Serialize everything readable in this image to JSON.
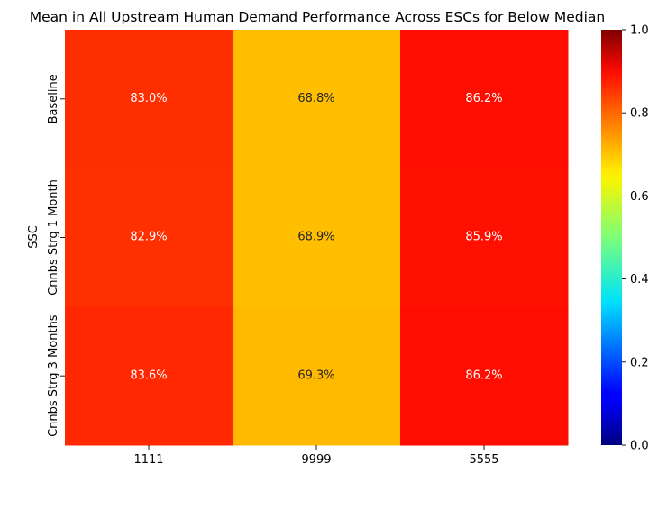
{
  "chart_data": {
    "type": "heatmap",
    "title": "Mean in All Upstream Human Demand Performance Across ESCs for Below Median",
    "xlabel": "",
    "ylabel": "SSC",
    "x_categories": [
      "1111",
      "9999",
      "5555"
    ],
    "y_categories": [
      "Baseline",
      "Cnnbs Strg 1 Month",
      "Cnnbs Strg 3 Months"
    ],
    "values": [
      [
        0.83,
        0.688,
        0.862
      ],
      [
        0.829,
        0.689,
        0.859
      ],
      [
        0.836,
        0.693,
        0.862
      ]
    ],
    "labels": [
      [
        "83.0%",
        "68.8%",
        "86.2%"
      ],
      [
        "82.9%",
        "68.9%",
        "85.9%"
      ],
      [
        "83.6%",
        "69.3%",
        "86.2%"
      ]
    ],
    "colormap": "jet",
    "vmin": 0,
    "vmax": 1,
    "colorbar_ticks": [
      "0.0",
      "0.2",
      "0.4",
      "0.6",
      "0.8",
      "1.0"
    ]
  }
}
